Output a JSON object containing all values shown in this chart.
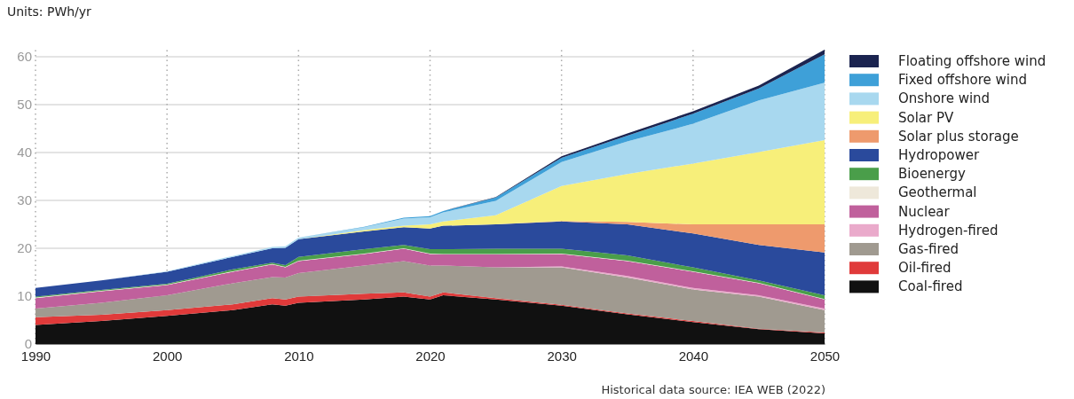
{
  "chart_data": {
    "type": "area",
    "stacked": true,
    "ylabel": "Units: PWh/yr",
    "x": [
      1990,
      1995,
      2000,
      2005,
      2008,
      2009,
      2010,
      2015,
      2018,
      2020,
      2021,
      2025,
      2030,
      2035,
      2040,
      2045,
      2050
    ],
    "xlim": [
      1990,
      2050
    ],
    "xticks": [
      1990,
      2000,
      2010,
      2020,
      2030,
      2040,
      2050
    ],
    "ylim": [
      0,
      62
    ],
    "yticks": [
      0,
      10,
      20,
      30,
      40,
      50,
      60
    ],
    "grid": true,
    "legend": "right",
    "series": [
      {
        "name": "Coal-fired",
        "color": "#111111",
        "values": [
          4.0,
          4.8,
          5.9,
          7.1,
          8.3,
          8.0,
          8.6,
          9.3,
          9.9,
          9.3,
          10.2,
          9.3,
          8.0,
          6.2,
          4.6,
          3.1,
          2.2
        ]
      },
      {
        "name": "Oil-fired",
        "color": "#e03a3a",
        "values": [
          1.6,
          1.3,
          1.2,
          1.2,
          1.3,
          1.3,
          1.3,
          1.2,
          0.9,
          0.6,
          0.6,
          0.3,
          0.2,
          0.2,
          0.2,
          0.1,
          0.2
        ]
      },
      {
        "name": "Gas-fired",
        "color": "#a09a90",
        "values": [
          1.8,
          2.5,
          3.1,
          4.4,
          4.4,
          4.6,
          4.9,
          5.9,
          6.5,
          6.5,
          5.6,
          6.4,
          7.8,
          7.5,
          6.6,
          6.7,
          4.7
        ]
      },
      {
        "name": "Hydrogen-fired",
        "color": "#eaaacb",
        "values": [
          0,
          0,
          0,
          0,
          0,
          0,
          0,
          0,
          0,
          0,
          0,
          0,
          0.2,
          0.3,
          0.3,
          0.3,
          0.3
        ]
      },
      {
        "name": "Nuclear",
        "color": "#c0609c",
        "values": [
          2.2,
          2.4,
          2.1,
          2.4,
          2.6,
          2.1,
          2.5,
          2.4,
          2.6,
          2.4,
          2.3,
          2.7,
          2.6,
          3.1,
          3.4,
          2.5,
          1.9
        ]
      },
      {
        "name": "Geothermal",
        "color": "#eee8da",
        "values": [
          0.1,
          0.1,
          0.1,
          0.1,
          0.1,
          0.1,
          0.1,
          0.1,
          0.1,
          0.1,
          0.1,
          0.1,
          0.1,
          0.1,
          0.1,
          0.1,
          0.1
        ]
      },
      {
        "name": "Bioenergy",
        "color": "#4a9e4a",
        "values": [
          0.2,
          0.2,
          0.2,
          0.4,
          0.3,
          0.4,
          0.8,
          0.9,
          0.7,
          0.9,
          1.0,
          1.1,
          1.0,
          1.1,
          0.8,
          0.5,
          0.8
        ]
      },
      {
        "name": "Hydropower",
        "color": "#2a4a9c",
        "values": [
          1.8,
          2.0,
          2.5,
          2.6,
          3.0,
          3.6,
          3.7,
          3.7,
          3.7,
          4.3,
          4.9,
          5.1,
          5.7,
          6.5,
          7.1,
          7.4,
          8.9
        ]
      },
      {
        "name": "Solar plus storage",
        "color": "#ee9a6d",
        "values": [
          0,
          0,
          0,
          0,
          0,
          0,
          0,
          0,
          0,
          0,
          0,
          0,
          0.1,
          0.5,
          1.9,
          4.3,
          5.9
        ]
      },
      {
        "name": "Solar PV",
        "color": "#f7ef7a",
        "values": [
          0,
          0,
          0,
          0,
          0,
          0,
          0,
          0.3,
          0.3,
          0.9,
          0.9,
          1.9,
          7.3,
          10.0,
          12.7,
          15.1,
          17.6
        ]
      },
      {
        "name": "Onshore wind",
        "color": "#a8d8ef",
        "values": [
          0,
          0,
          0.1,
          0.2,
          0.3,
          0.3,
          0.3,
          0.6,
          1.5,
          1.5,
          1.9,
          3.0,
          5.0,
          6.8,
          8.3,
          10.8,
          12.0
        ]
      },
      {
        "name": "Fixed offshore wind",
        "color": "#3ea0d8",
        "values": [
          0,
          0,
          0,
          0,
          0,
          0,
          0,
          0.1,
          0.2,
          0.2,
          0.3,
          0.7,
          0.9,
          1.2,
          2.1,
          2.5,
          5.9
        ]
      },
      {
        "name": "Floating offshore wind",
        "color": "#1b2450",
        "values": [
          0,
          0,
          0,
          0,
          0,
          0,
          0,
          0,
          0,
          0,
          0,
          0.1,
          0.3,
          0.5,
          0.5,
          0.6,
          1.0
        ]
      }
    ],
    "annotations": [
      "Historical data source: IEA WEB (2022)"
    ]
  }
}
